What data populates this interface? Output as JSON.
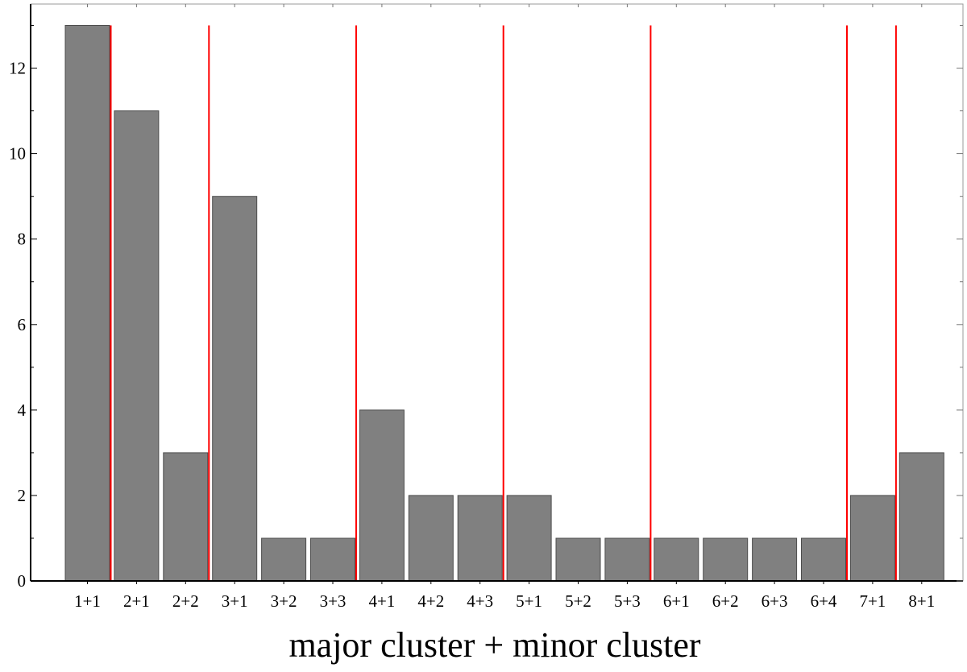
{
  "chart_data": {
    "type": "bar",
    "title": "",
    "xlabel": "major cluster + minor cluster",
    "ylabel": "",
    "categories": [
      "1+1",
      "2+1",
      "2+2",
      "3+1",
      "3+2",
      "3+3",
      "4+1",
      "4+2",
      "4+3",
      "5+1",
      "5+2",
      "5+3",
      "6+1",
      "6+2",
      "6+3",
      "6+4",
      "7+1",
      "8+1"
    ],
    "values": [
      13,
      11,
      3,
      9,
      1,
      1,
      4,
      2,
      2,
      2,
      1,
      1,
      1,
      1,
      1,
      1,
      2,
      3
    ],
    "ylim": [
      0,
      13.5
    ],
    "yticks": [
      0,
      2,
      4,
      6,
      8,
      10,
      12
    ],
    "grid": false,
    "group_separators_after": [
      "1+1",
      "2+2",
      "3+3",
      "4+3",
      "5+3",
      "6+4",
      "7+1"
    ],
    "colors": {
      "bar": "#808080",
      "bar_edge": "#4d4d4d",
      "separator": "#ff0000",
      "axis": "#000000"
    }
  }
}
